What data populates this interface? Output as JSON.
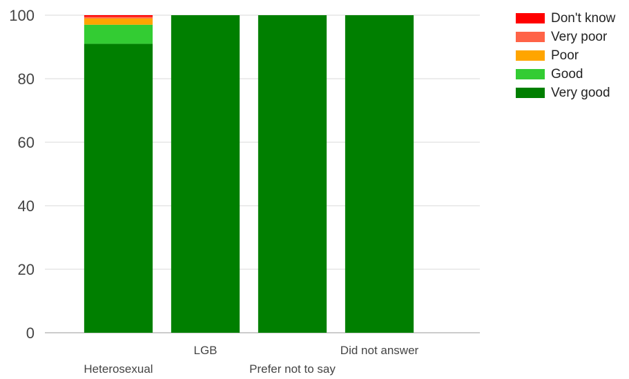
{
  "chart_data": {
    "type": "bar",
    "stacked": true,
    "categories": [
      "Heterosexual",
      "LGB",
      "Prefer not to say",
      "Did not answer"
    ],
    "series": [
      {
        "name": "Very good",
        "color": "#007f00",
        "values": [
          91,
          100,
          100,
          100
        ]
      },
      {
        "name": "Good",
        "color": "#33cc33",
        "values": [
          6,
          0,
          0,
          0
        ]
      },
      {
        "name": "Poor",
        "color": "#ffa500",
        "values": [
          2,
          0,
          0,
          0
        ]
      },
      {
        "name": "Very poor",
        "color": "#ff6347",
        "values": [
          0.5,
          0,
          0,
          0
        ]
      },
      {
        "name": "Don't know",
        "color": "#ff0000",
        "values": [
          0.5,
          0,
          0,
          0
        ]
      }
    ],
    "legend": {
      "position": "top-right",
      "order": [
        "Don't know",
        "Very poor",
        "Poor",
        "Good",
        "Very good"
      ]
    },
    "yticks": [
      "0",
      "20",
      "40",
      "60",
      "80",
      "100"
    ],
    "ylim": [
      0,
      100
    ],
    "grid": true,
    "title": "",
    "xlabel": "",
    "ylabel": ""
  }
}
